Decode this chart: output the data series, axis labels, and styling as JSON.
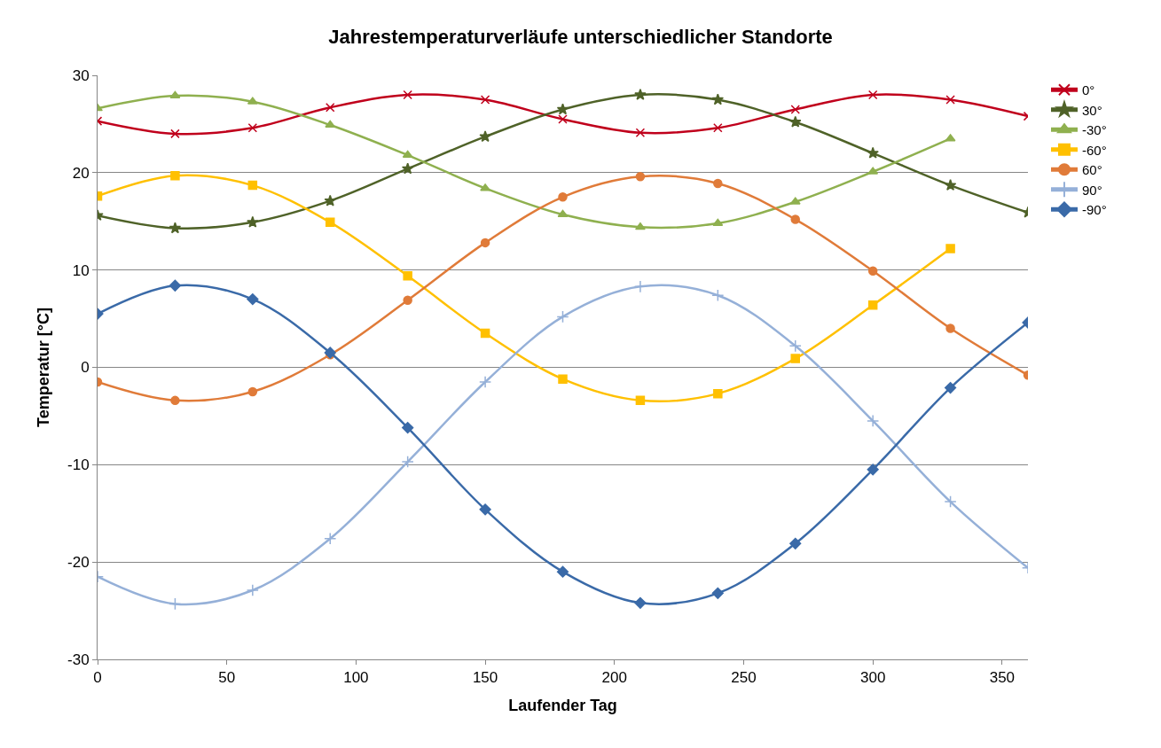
{
  "chart_data": {
    "type": "line",
    "title": "Jahrestemperaturverläufe unterschiedlicher Standorte",
    "xlabel": "Laufender Tag",
    "ylabel": "Temperatur [°C]",
    "x": [
      0,
      30,
      60,
      90,
      120,
      150,
      180,
      210,
      240,
      270,
      300,
      330,
      360
    ],
    "series": [
      {
        "name": "0°",
        "color": "#c0001c",
        "marker": "x",
        "values": [
          25.3,
          24.0,
          24.6,
          26.7,
          28.0,
          27.5,
          25.5,
          24.1,
          24.6,
          26.5,
          28.0,
          27.5,
          25.8
        ]
      },
      {
        "name": "30°",
        "color": "#4f6228",
        "marker": "star",
        "values": [
          15.6,
          14.3,
          14.9,
          17.1,
          20.4,
          23.7,
          26.5,
          28.0,
          27.5,
          25.2,
          22.0,
          18.7,
          15.9
        ]
      },
      {
        "name": "-30°",
        "color": "#8fb04f",
        "marker": "triangle",
        "values": [
          26.6,
          27.9,
          27.3,
          24.9,
          21.8,
          18.4,
          15.7,
          14.4,
          14.8,
          17.0,
          20.1,
          23.5,
          null
        ]
      },
      {
        "name": "-60°",
        "color": "#ffc000",
        "marker": "square",
        "values": [
          17.6,
          19.7,
          18.7,
          14.9,
          9.4,
          3.5,
          -1.2,
          -3.4,
          -2.7,
          0.9,
          6.4,
          12.2,
          null
        ]
      },
      {
        "name": "60°",
        "color": "#e07b39",
        "marker": "circle",
        "values": [
          -1.5,
          -3.4,
          -2.5,
          1.3,
          6.9,
          12.8,
          17.5,
          19.6,
          18.9,
          15.2,
          9.9,
          4.0,
          -0.8
        ]
      },
      {
        "name": "90°",
        "color": "#95b0d8",
        "marker": "cross",
        "values": [
          -21.5,
          -24.3,
          -22.9,
          -17.6,
          -9.7,
          -1.5,
          5.2,
          8.3,
          7.4,
          2.2,
          -5.5,
          -13.8,
          -20.6
        ]
      },
      {
        "name": "-90°",
        "color": "#3a6aa8",
        "marker": "diamond",
        "values": [
          5.5,
          8.4,
          7.0,
          1.5,
          -6.2,
          -14.6,
          -21.0,
          -24.2,
          -23.2,
          -18.1,
          -10.5,
          -2.1,
          4.6
        ]
      }
    ],
    "xlim": [
      0,
      360
    ],
    "xticks": [
      0,
      50,
      100,
      150,
      200,
      250,
      300,
      350
    ],
    "ylim": [
      -30,
      30
    ],
    "yticks": [
      -30,
      -20,
      -10,
      0,
      10,
      20,
      30
    ],
    "grid": "y",
    "legend": "right",
    "line_style": "solid"
  }
}
